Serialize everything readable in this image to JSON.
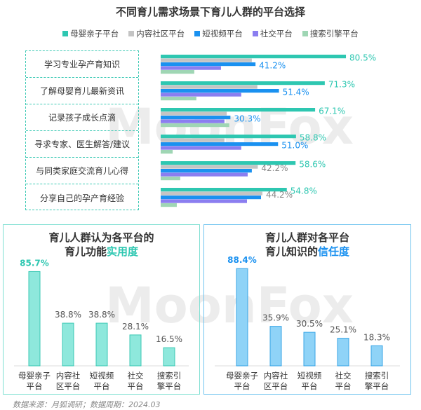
{
  "colors": {
    "maternal": "#2ec7b1",
    "community": "#c4c4c4",
    "short_video": "#1a91f0",
    "social": "#8b7ef0",
    "search": "#9fd6b4",
    "trust_accent": "#1a91f0",
    "utility_accent": "#2ec7b1"
  },
  "watermark": "MoonFox",
  "chart_data": [
    {
      "type": "bar",
      "orientation": "horizontal",
      "title": "不同育儿需求场景下育儿人群的平台选择",
      "legend_position": "top",
      "categories": [
        "学习专业孕产育知识",
        "了解母婴育儿最新资讯",
        "记录孩子成长点滴",
        "寻求专家、医生解答/建议",
        "与同类家庭交流育儿心得",
        "分享自己的孕产育经验"
      ],
      "series": [
        {
          "name": "母婴亲子平台",
          "color": "#2ec7b1",
          "values": [
            80.5,
            71.3,
            67.1,
            58.8,
            58.6,
            54.8
          ],
          "labels": [
            "80.5%",
            "71.3%",
            "67.1%",
            "58.8%",
            "58.6%",
            "54.8%"
          ]
        },
        {
          "name": "内容社区平台",
          "color": "#c4c4c4",
          "values": [
            39.6,
            42.0,
            28.7,
            27.7,
            42.2,
            44.2
          ],
          "labels": [
            null,
            null,
            null,
            null,
            "42.2%",
            "44.2%"
          ]
        },
        {
          "name": "短视频平台",
          "color": "#1a91f0",
          "values": [
            41.2,
            51.4,
            30.3,
            51.0,
            39.6,
            43.6
          ],
          "labels": [
            "41.2%",
            "51.4%",
            "30.3%",
            "51.0%",
            null,
            null
          ]
        },
        {
          "name": "社交平台",
          "color": "#8b7ef0",
          "values": [
            26.2,
            35.0,
            27.7,
            35.0,
            37.8,
            37.5
          ],
          "labels": [
            null,
            null,
            null,
            null,
            null,
            null
          ]
        },
        {
          "name": "搜索引擎平台",
          "color": "#9fd6b4",
          "values": [
            14.6,
            15.5,
            29.8,
            5.2,
            8.5,
            7.0
          ],
          "labels": [
            null,
            null,
            null,
            null,
            null,
            null
          ]
        }
      ]
    },
    {
      "type": "bar",
      "title_main": "育儿人群认为各平台的育儿功能",
      "title_line1": "育儿人群认为各平台的",
      "title_line2_prefix": "育儿功能",
      "title_line2_accent": "实用度",
      "categories": [
        [
          "母婴亲子",
          "平台"
        ],
        [
          "内容社",
          "区平台"
        ],
        [
          "短视频",
          "平台"
        ],
        [
          "社交",
          "平台"
        ],
        [
          "搜索引",
          "擎平台"
        ]
      ],
      "values": [
        85.7,
        38.8,
        38.8,
        28.1,
        16.5
      ],
      "labels": [
        "85.7%",
        "38.8%",
        "38.8%",
        "28.1%",
        "16.5%"
      ],
      "color": "#8ee8dc"
    },
    {
      "type": "bar",
      "title_line1": "育儿人群对各平台",
      "title_line2_prefix": "育儿知识的",
      "title_line2_accent": "信任度",
      "categories": [
        [
          "母婴亲子",
          "平台"
        ],
        [
          "内容社",
          "区平台"
        ],
        [
          "短视频",
          "平台"
        ],
        [
          "社交",
          "平台"
        ],
        [
          "搜索引",
          "擎平台"
        ]
      ],
      "values": [
        88.4,
        35.9,
        30.5,
        25.1,
        18.3
      ],
      "labels": [
        "88.4%",
        "35.9%",
        "30.5%",
        "25.1%",
        "18.3%"
      ],
      "color": "#8fd3f7"
    }
  ],
  "footer": "数据来源：月狐调研；数据周期：2024.03"
}
